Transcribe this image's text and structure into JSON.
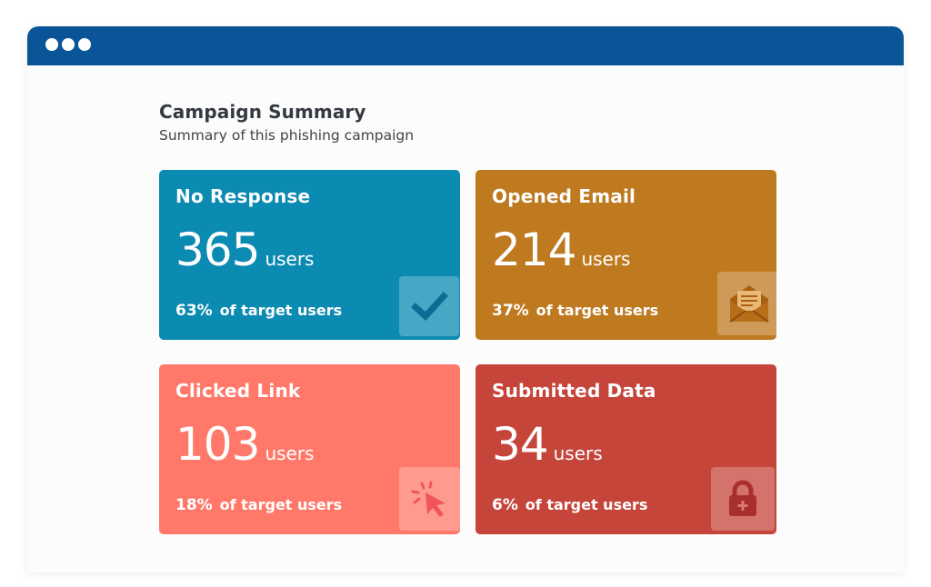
{
  "summary": {
    "title": "Campaign Summary",
    "subtitle": "Summary of this phishing campaign"
  },
  "cards": [
    {
      "title": "No Response",
      "count": "365",
      "unit": "users",
      "percent": "63%",
      "percent_label": "of target users",
      "icon": "checkmark-icon",
      "color": "#0b8ab2"
    },
    {
      "title": "Opened Email",
      "count": "214",
      "unit": "users",
      "percent": "37%",
      "percent_label": "of target users",
      "icon": "envelope-icon",
      "color": "#bf791f"
    },
    {
      "title": "Clicked Link",
      "count": "103",
      "unit": "users",
      "percent": "18%",
      "percent_label": "of target users",
      "icon": "cursor-click-icon",
      "color": "#ff7869"
    },
    {
      "title": "Submitted Data",
      "count": "34",
      "unit": "users",
      "percent": "6%",
      "percent_label": "of target users",
      "icon": "lock-icon",
      "color": "#c5453b"
    }
  ],
  "colors": {
    "titlebar": "#0a5597",
    "window_background": "#fcfcfd"
  }
}
